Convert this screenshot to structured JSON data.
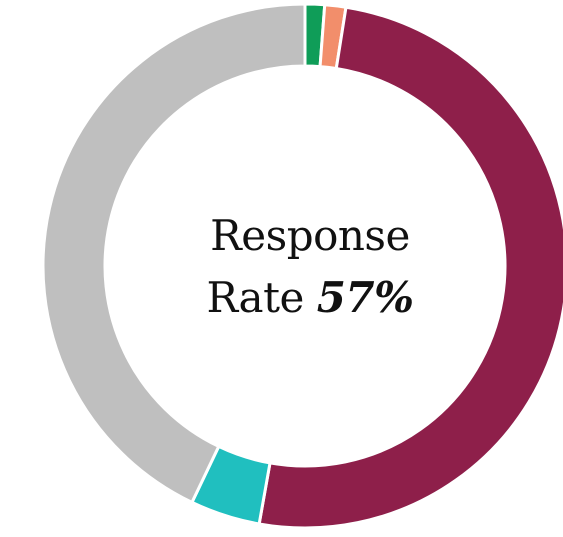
{
  "chart_data": {
    "type": "pie",
    "variant": "donut",
    "center_label": {
      "line1": "Response",
      "line2": "Rate",
      "value": "57%"
    },
    "slices": [
      {
        "value": 1.2,
        "color": "#0f9d58"
      },
      {
        "value": 1.3,
        "color": "#f28e6b"
      },
      {
        "value": 50.3,
        "color": "#8e1f4a"
      },
      {
        "value": 4.3,
        "color": "#20bfbf"
      },
      {
        "value": 42.9,
        "color": "#bfbfbf"
      }
    ]
  }
}
